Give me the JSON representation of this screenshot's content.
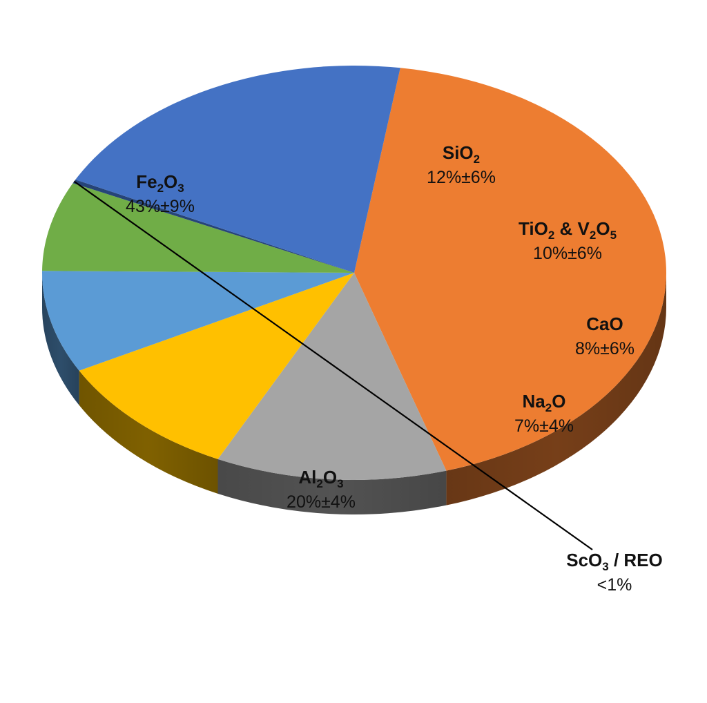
{
  "chart_data": {
    "type": "pie",
    "style": "3d",
    "title": "",
    "slices": [
      {
        "name": "Fe₂O₃",
        "label_parts": [
          [
            "Fe",
            ""
          ],
          [
            "2",
            "sub"
          ],
          [
            "O",
            ""
          ],
          [
            "3",
            "sub"
          ]
        ],
        "value": 43,
        "label": "43%±9%",
        "color": "#ED7D31"
      },
      {
        "name": "SiO₂",
        "label_parts": [
          [
            "SiO",
            ""
          ],
          [
            "2",
            "sub"
          ]
        ],
        "value": 12,
        "label": "12%±6%",
        "color": "#A5A5A5"
      },
      {
        "name": "TiO₂ & V₂O₅",
        "label_parts": [
          [
            "TiO",
            ""
          ],
          [
            "2",
            "sub"
          ],
          [
            " & V",
            ""
          ],
          [
            "2",
            "sub"
          ],
          [
            "O",
            ""
          ],
          [
            "5",
            "sub"
          ]
        ],
        "value": 10,
        "label": "10%±6%",
        "color": "#FFC000"
      },
      {
        "name": "CaO",
        "label_parts": [
          [
            "CaO",
            ""
          ]
        ],
        "value": 8,
        "label": "8%±6%",
        "color": "#5B9BD5"
      },
      {
        "name": "Na₂O",
        "label_parts": [
          [
            "Na",
            ""
          ],
          [
            "2",
            "sub"
          ],
          [
            "O",
            ""
          ]
        ],
        "value": 7,
        "label": "7%±4%",
        "color": "#70AD47"
      },
      {
        "name": "ScO₃ / REO",
        "label_parts": [
          [
            "ScO",
            ""
          ],
          [
            "3",
            "sub"
          ],
          [
            " /  REO",
            ""
          ]
        ],
        "value": 0.3,
        "label": "<1%",
        "color": "#264478"
      },
      {
        "name": "Al₂O₃",
        "label_parts": [
          [
            "Al",
            ""
          ],
          [
            "2",
            "sub"
          ],
          [
            "O",
            ""
          ],
          [
            "3",
            "sub"
          ]
        ],
        "value": 20,
        "label": "20%±4%",
        "color": "#4472C4"
      }
    ]
  }
}
